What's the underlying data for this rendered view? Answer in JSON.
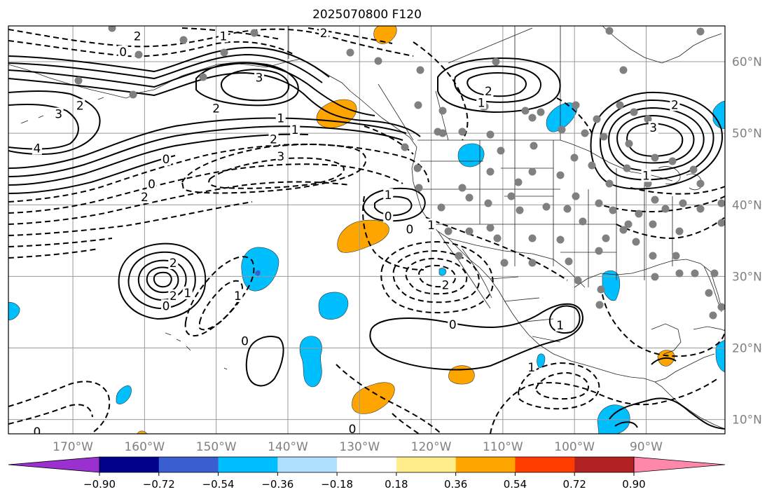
{
  "title": "2025070800 F120",
  "map": {
    "extent": {
      "lon": [
        -179,
        -79
      ],
      "lat": [
        8,
        65
      ]
    },
    "lon_gridlines": [
      -170,
      -160,
      -150,
      -140,
      -130,
      -120,
      -110,
      -100,
      -90
    ],
    "lat_gridlines": [
      10,
      20,
      30,
      40,
      50,
      60
    ],
    "lon_tick_labels": [
      "170°W",
      "160°W",
      "150°W",
      "140°W",
      "130°W",
      "120°W",
      "110°W",
      "100°W",
      "90°W"
    ],
    "lat_tick_labels": [
      "10°N",
      "20°N",
      "30°N",
      "40°N",
      "50°N",
      "60°N"
    ],
    "contour_labels": [
      {
        "text": "2",
        "lon": -161,
        "lat": 63.5
      },
      {
        "text": "1",
        "lon": -149,
        "lat": 63.5
      },
      {
        "text": "2",
        "lon": -135,
        "lat": 63.9
      },
      {
        "text": "0",
        "lon": -163,
        "lat": 61.3
      },
      {
        "text": "3",
        "lon": -144,
        "lat": 57.7
      },
      {
        "text": "2",
        "lon": -169,
        "lat": 53.8
      },
      {
        "text": "3",
        "lon": -172,
        "lat": 52.6
      },
      {
        "text": "2",
        "lon": -150,
        "lat": 53.4
      },
      {
        "text": "1",
        "lon": -141,
        "lat": 52.0
      },
      {
        "text": "1",
        "lon": -139,
        "lat": 50.4
      },
      {
        "text": "2",
        "lon": -142,
        "lat": 49.1
      },
      {
        "text": "3",
        "lon": -141,
        "lat": 46.7
      },
      {
        "text": "4",
        "lon": -175,
        "lat": 47.8
      },
      {
        "text": "0",
        "lon": -157,
        "lat": 46.3
      },
      {
        "text": "0",
        "lon": -159,
        "lat": 42.8
      },
      {
        "text": "2",
        "lon": -160,
        "lat": 41.0
      },
      {
        "text": "2",
        "lon": -112,
        "lat": 55.8
      },
      {
        "text": "1",
        "lon": -113,
        "lat": 54.2
      },
      {
        "text": "2",
        "lon": -86,
        "lat": 53.9
      },
      {
        "text": "3",
        "lon": -89,
        "lat": 50.7
      },
      {
        "text": "1",
        "lon": -90,
        "lat": 44.0
      },
      {
        "text": "1",
        "lon": -126,
        "lat": 41.3
      },
      {
        "text": "0",
        "lon": -126,
        "lat": 38.3
      },
      {
        "text": "0",
        "lon": -123,
        "lat": 36.5
      },
      {
        "text": "1",
        "lon": -120,
        "lat": 37.1
      },
      {
        "text": "2",
        "lon": -156,
        "lat": 31.8
      },
      {
        "text": "2",
        "lon": -156,
        "lat": 27.2
      },
      {
        "text": "0",
        "lon": -157,
        "lat": 25.8
      },
      {
        "text": "1",
        "lon": -154,
        "lat": 27.6
      },
      {
        "text": "1",
        "lon": -147,
        "lat": 27.2
      },
      {
        "text": "2",
        "lon": -118,
        "lat": 28.7
      },
      {
        "text": "0",
        "lon": -117,
        "lat": 23.2
      },
      {
        "text": "1",
        "lon": -102,
        "lat": 23.1
      },
      {
        "text": "0",
        "lon": -146,
        "lat": 20.9
      },
      {
        "text": "1",
        "lon": -106,
        "lat": 17.2
      },
      {
        "text": "0",
        "lon": -175,
        "lat": 8.2
      },
      {
        "text": "0",
        "lon": -131,
        "lat": 8.6
      }
    ]
  },
  "colorbar": {
    "colors": [
      "#9b30d0",
      "#00008b",
      "#3a5ed0",
      "#00bfff",
      "#b0e0ff",
      "#ffffff",
      "#ffec8b",
      "#ffa500",
      "#ff3d00",
      "#b22222",
      "#ff88aa"
    ],
    "tick_labels": [
      "−0.90",
      "−0.72",
      "−0.54",
      "−0.36",
      "−0.18",
      "0.18",
      "0.36",
      "0.54",
      "0.72",
      "0.90"
    ]
  },
  "colors": {
    "grid": "#999999",
    "axis_labels": "#808080",
    "stations": "#808080",
    "contours": "#000000",
    "positive_fill": "#ffa500",
    "negative_fill": "#00bfff",
    "strong_negative_fill": "#3a5ed0"
  }
}
